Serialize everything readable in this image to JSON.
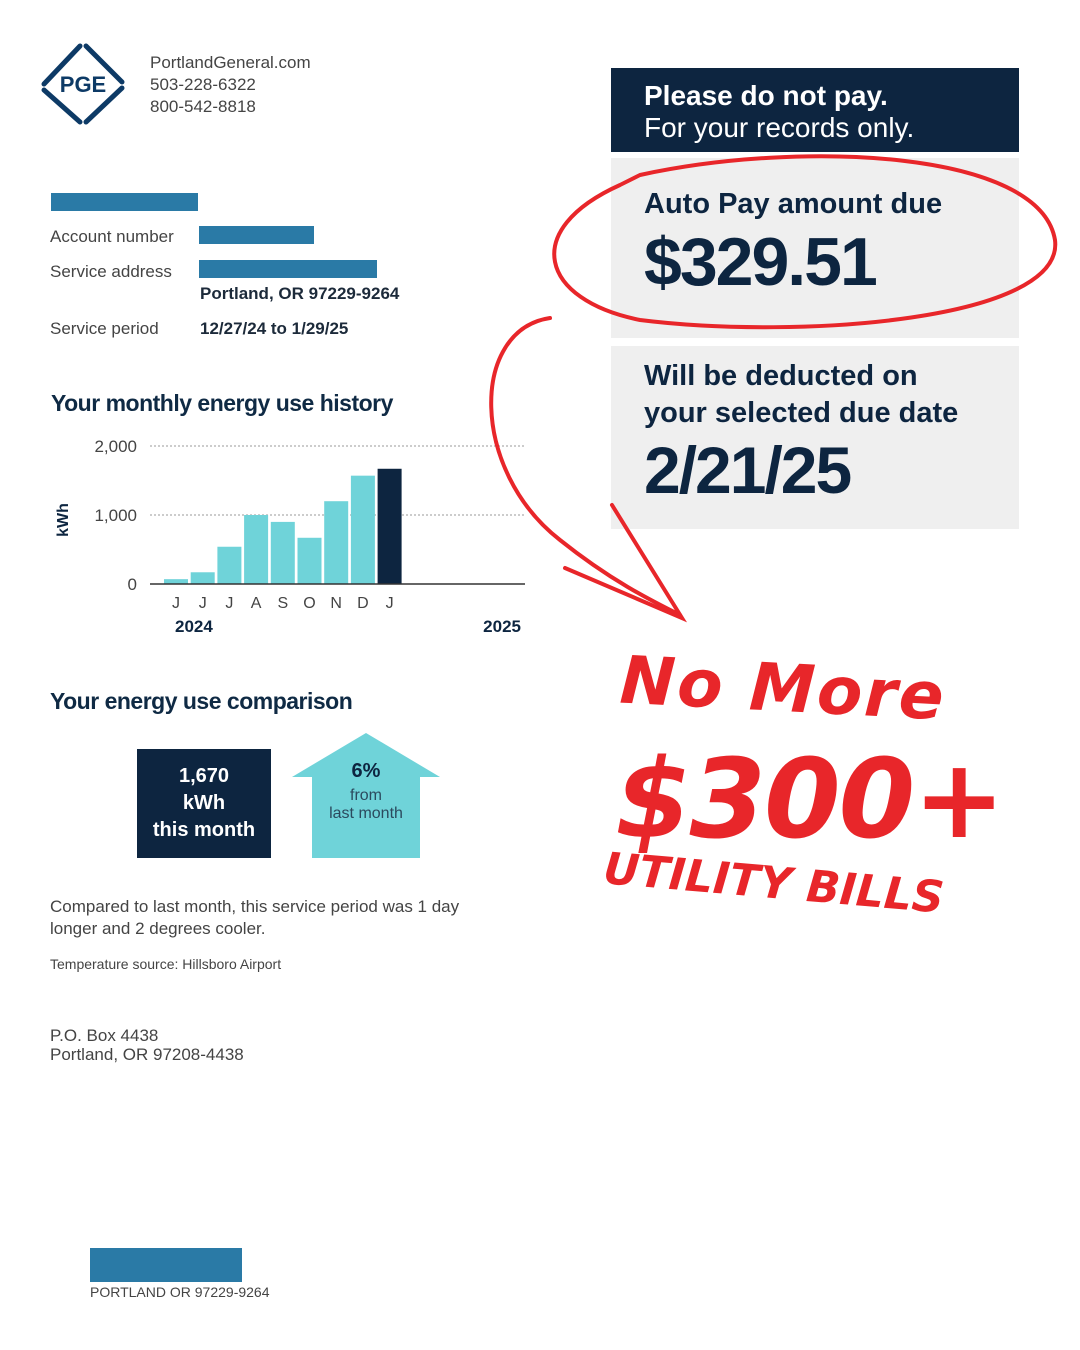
{
  "header": {
    "logo_text": "PGE",
    "website": "PortlandGeneral.com",
    "phone1": "503-228-6322",
    "phone2": "800-542-8818"
  },
  "account": {
    "account_number_label": "Account number",
    "service_address_label": "Service address",
    "address_city": "Portland, OR 97229-9264",
    "service_period_label": "Service period",
    "service_period": "12/27/24 to 1/29/25"
  },
  "notice": {
    "line1": "Please do not pay.",
    "line2": "For your records only."
  },
  "autopay": {
    "label": "Auto Pay amount due",
    "amount": "$329.51"
  },
  "deduction": {
    "line1": "Will be deducted on",
    "line2": "your selected due date",
    "date": "2/21/25"
  },
  "history": {
    "title": "Your monthly energy use history"
  },
  "chart_data": {
    "type": "bar",
    "ylabel": "kWh",
    "ylim": [
      0,
      2000
    ],
    "yticks": [
      "0",
      "1,000",
      "2,000"
    ],
    "grid": true,
    "categories": [
      "J",
      "J",
      "J",
      "A",
      "S",
      "O",
      "N",
      "D",
      "J"
    ],
    "values": [
      70,
      170,
      540,
      1000,
      900,
      670,
      1200,
      1570,
      1670
    ],
    "year_labels": [
      "2024",
      "2025"
    ],
    "colors": {
      "past": "#6fd3d9",
      "current": "#0d2540"
    }
  },
  "comparison": {
    "title": "Your energy use comparison",
    "usage_value": "1,670",
    "usage_unit": "kWh",
    "usage_period": "this month",
    "change_pct": "6%",
    "change_from": "from",
    "change_ref": "last month",
    "note": "Compared to last month, this service period was 1 day longer and 2 degrees cooler.",
    "temp_source": "Temperature source: Hillsboro Airport"
  },
  "mailing": {
    "line1": "P.O. Box 4438",
    "line2": "Portland, OR 97208-4438"
  },
  "footer": {
    "city": "PORTLAND OR 97229-9264"
  },
  "overlay": {
    "line1": "No More",
    "line2": "$300+",
    "line3": "UTILITY BILLS",
    "color": "#e8262a"
  }
}
